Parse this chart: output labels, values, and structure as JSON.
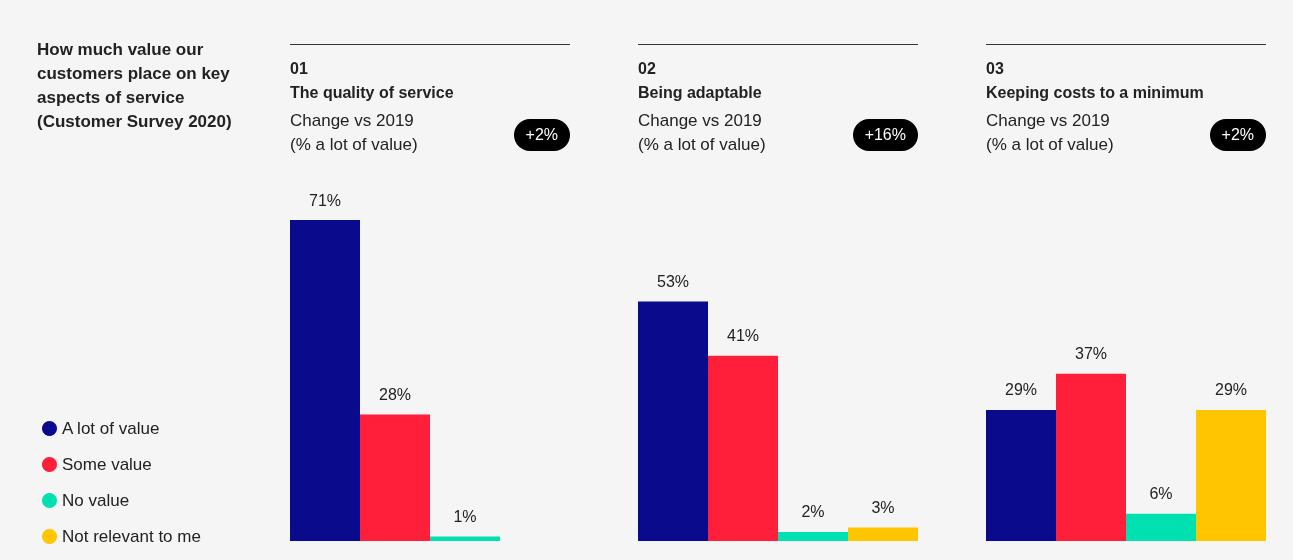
{
  "chart_data": [
    {
      "type": "other",
      "title": "How much value our customers place on key aspects of service (Customer Survey 2020)"
    },
    {
      "type": "bar",
      "title": "01",
      "subtitle": "The quality of service",
      "annotations": [
        "Change vs 2019\n(% a lot of value)",
        "+2%"
      ],
      "categories": [
        null
      ],
      "legend": "bottom left",
      "series": [
        {
          "name": "A lot of value",
          "color": "#0a0a8c",
          "values": [
            71
          ],
          "value_labels": [
            "71%"
          ]
        },
        {
          "name": "Some value",
          "color": "#ff1f3a",
          "values": [
            28
          ],
          "value_labels": [
            "28%"
          ]
        },
        {
          "name": "No value",
          "color": "#00e0b0",
          "values": [
            1
          ],
          "value_labels": [
            "1%"
          ]
        },
        {
          "name": "Not relevant to me",
          "color": "#ffc600",
          "values": [
            null
          ],
          "value_labels": [
            null
          ]
        }
      ]
    },
    {
      "type": "bar",
      "title": "02",
      "subtitle": "Being adaptable",
      "annotations": [
        "Change vs 2019\n(% a lot of value)",
        "+16%"
      ],
      "categories": [
        null
      ],
      "series": [
        {
          "color": "#0a0a8c",
          "values": [
            53
          ],
          "value_labels": [
            "53%"
          ]
        },
        {
          "color": "#ff1f3a",
          "values": [
            41
          ],
          "value_labels": [
            "41%"
          ]
        },
        {
          "color": "#00e0b0",
          "values": [
            2
          ],
          "value_labels": [
            "2%"
          ]
        },
        {
          "color": "#ffc600",
          "values": [
            3
          ],
          "value_labels": [
            "3%"
          ]
        }
      ]
    },
    {
      "type": "bar",
      "title": "03",
      "subtitle": "Keeping costs to a minimum",
      "annotations": [
        "Change vs 2019\n(% a lot of value)",
        "+2%"
      ],
      "categories": [
        null
      ],
      "series": [
        {
          "color": "#0a0a8c",
          "values": [
            29
          ],
          "value_labels": [
            "29%"
          ]
        },
        {
          "color": "#ff1f3a",
          "values": [
            37
          ],
          "value_labels": [
            "37%"
          ]
        },
        {
          "color": "#00e0b0",
          "values": [
            6
          ],
          "value_labels": [
            "6%"
          ]
        },
        {
          "color": "#ffc600",
          "values": [
            29
          ],
          "value_labels": [
            "29%"
          ]
        }
      ]
    }
  ]
}
